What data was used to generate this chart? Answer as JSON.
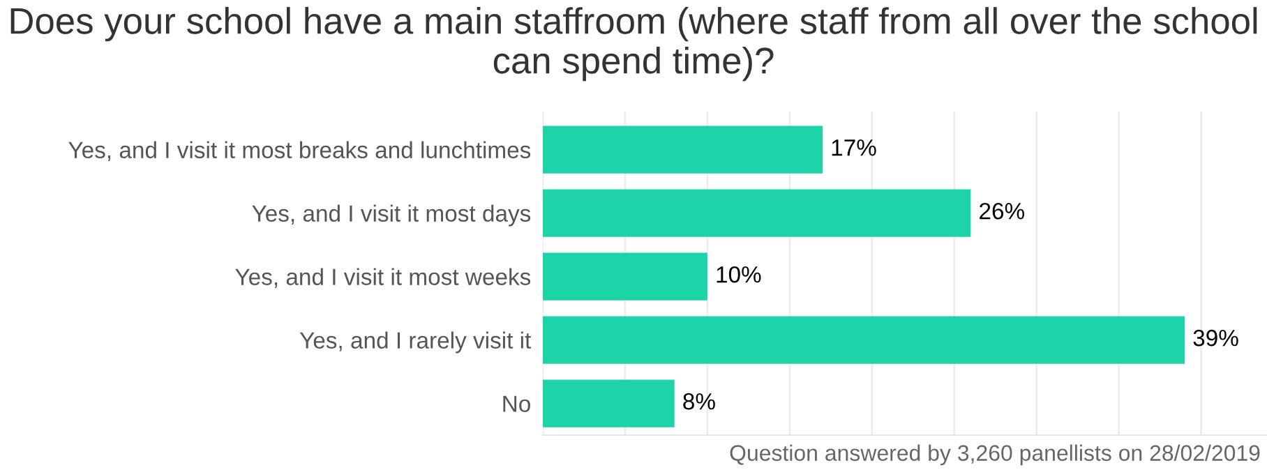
{
  "chart_data": {
    "type": "bar",
    "orientation": "horizontal",
    "title": "Does your school have a main staffroom (where staff from all over the school can spend time)?",
    "categories": [
      "Yes, and I visit it most breaks and lunchtimes",
      "Yes, and I visit it most days",
      "Yes, and I visit it most weeks",
      "Yes, and I rarely visit it",
      "No"
    ],
    "values": [
      17,
      26,
      10,
      39,
      8
    ],
    "value_labels": [
      "17%",
      "26%",
      "10%",
      "39%",
      "8%"
    ],
    "color": "#1fd3a8",
    "xlim": [
      0,
      44
    ],
    "xticks": [
      {
        "value": 0,
        "label": null
      },
      {
        "value": 5,
        "label": null
      },
      {
        "value": 10,
        "label": null
      },
      {
        "value": 15,
        "label": null
      },
      {
        "value": 20,
        "label": null
      },
      {
        "value": 25,
        "label": null
      },
      {
        "value": 30,
        "label": null
      },
      {
        "value": 35,
        "label": null
      },
      {
        "value": 40,
        "label": null
      }
    ],
    "tick_labels": "y",
    "grid": "x",
    "annotations": [
      "Question answered by 3,260 panellists on 28/02/2019"
    ]
  }
}
